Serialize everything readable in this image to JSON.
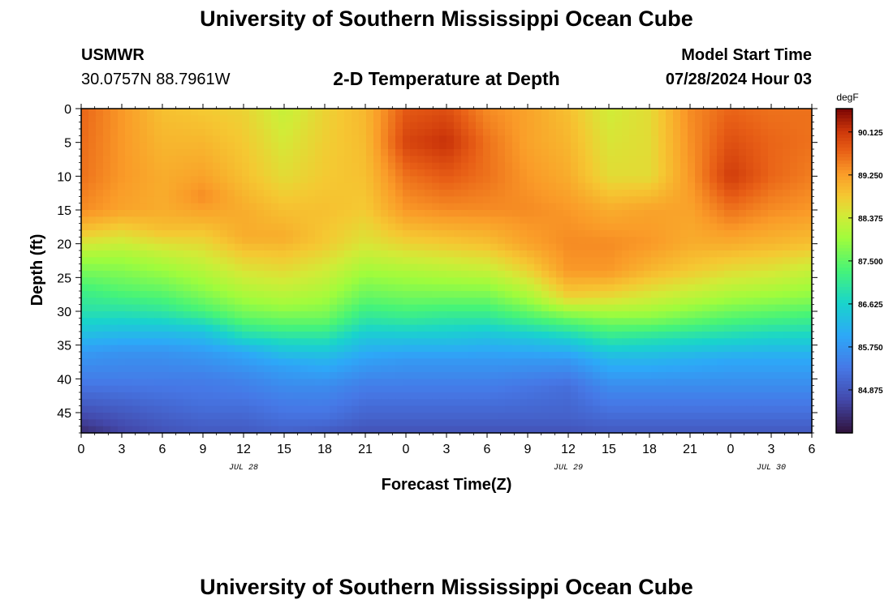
{
  "page": {
    "title_top": "University of Southern Mississippi Ocean Cube",
    "title_bottom": "University of Southern Mississippi Ocean Cube",
    "station_id": "USMWR",
    "station_coords": "30.0757N  88.7961W",
    "center_title": "2-D Temperature at Depth",
    "model_start_label": "Model Start Time",
    "model_start_value": "07/28/2024 Hour 03"
  },
  "chart_data": {
    "type": "heatmap",
    "title": "2-D Temperature at Depth",
    "xlabel": "Forecast Time(Z)",
    "ylabel": "Depth (ft)",
    "colorbar_unit": "degF",
    "x_range_hours": [
      0,
      54
    ],
    "x_tick_hours": [
      0,
      3,
      6,
      9,
      12,
      15,
      18,
      21,
      24,
      27,
      30,
      33,
      36,
      39,
      42,
      45,
      48,
      51,
      54
    ],
    "x_tick_labels": [
      "0",
      "3",
      "6",
      "9",
      "12",
      "15",
      "18",
      "21",
      "0",
      "3",
      "6",
      "9",
      "12",
      "15",
      "18",
      "21",
      "0",
      "3",
      "6"
    ],
    "date_labels": [
      {
        "hour": 12,
        "text": "JUL 28"
      },
      {
        "hour": 36,
        "text": "JUL 29"
      },
      {
        "hour": 51,
        "text": "JUL 30"
      }
    ],
    "y_range": [
      0,
      48
    ],
    "y_ticks": [
      0,
      5,
      10,
      15,
      20,
      25,
      30,
      35,
      40,
      45
    ],
    "y_tick_labels": [
      "0",
      "5",
      "10",
      "15",
      "20",
      "25",
      "30",
      "35",
      "40",
      "45"
    ],
    "colorbar_range": [
      84.0,
      90.6
    ],
    "colorbar_ticks": [
      90.125,
      89.25,
      88.375,
      87.5,
      86.625,
      85.75,
      84.875
    ],
    "colorbar_tick_labels": [
      "90.125",
      "89.250",
      "88.375",
      "87.500",
      "86.625",
      "85.750",
      "84.875"
    ],
    "grid": false,
    "columns": [
      {
        "hour": 0,
        "profile": [
          [
            0,
            89.7
          ],
          [
            10,
            89.6
          ],
          [
            15,
            89.4
          ],
          [
            18,
            88.9
          ],
          [
            22,
            88.0
          ],
          [
            27,
            87.2
          ],
          [
            30,
            86.9
          ],
          [
            33,
            86.4
          ],
          [
            36,
            85.8
          ],
          [
            40,
            85.4
          ],
          [
            44,
            84.9
          ],
          [
            48,
            84.3
          ]
        ]
      },
      {
        "hour": 3,
        "profile": [
          [
            0,
            89.3
          ],
          [
            10,
            89.3
          ],
          [
            15,
            89.2
          ],
          [
            18,
            88.7
          ],
          [
            22,
            88.0
          ],
          [
            27,
            87.4
          ],
          [
            30,
            86.9
          ],
          [
            33,
            86.3
          ],
          [
            36,
            85.7
          ],
          [
            40,
            85.4
          ],
          [
            44,
            85.0
          ],
          [
            48,
            84.6
          ]
        ]
      },
      {
        "hour": 6,
        "profile": [
          [
            0,
            88.9
          ],
          [
            10,
            89.1
          ],
          [
            15,
            89.1
          ],
          [
            18,
            88.9
          ],
          [
            22,
            88.2
          ],
          [
            27,
            87.5
          ],
          [
            30,
            87.0
          ],
          [
            33,
            86.3
          ],
          [
            36,
            85.7
          ],
          [
            40,
            85.4
          ],
          [
            44,
            85.1
          ],
          [
            48,
            84.8
          ]
        ]
      },
      {
        "hour": 9,
        "profile": [
          [
            0,
            88.8
          ],
          [
            10,
            89.2
          ],
          [
            13,
            89.4
          ],
          [
            16,
            89.1
          ],
          [
            22,
            88.4
          ],
          [
            27,
            87.8
          ],
          [
            30,
            87.3
          ],
          [
            33,
            86.4
          ],
          [
            36,
            85.8
          ],
          [
            40,
            85.4
          ],
          [
            44,
            85.2
          ],
          [
            48,
            84.9
          ]
        ]
      },
      {
        "hour": 12,
        "profile": [
          [
            0,
            88.7
          ],
          [
            10,
            88.9
          ],
          [
            15,
            89.1
          ],
          [
            19,
            89.1
          ],
          [
            24,
            88.5
          ],
          [
            28,
            88.0
          ],
          [
            31,
            87.5
          ],
          [
            34,
            86.7
          ],
          [
            36,
            86.0
          ],
          [
            40,
            85.5
          ],
          [
            44,
            85.2
          ],
          [
            48,
            84.9
          ]
        ]
      },
      {
        "hour": 15,
        "profile": [
          [
            0,
            88.3
          ],
          [
            10,
            88.6
          ],
          [
            15,
            88.9
          ],
          [
            19,
            89.1
          ],
          [
            24,
            88.6
          ],
          [
            29,
            88.0
          ],
          [
            32,
            87.4
          ],
          [
            35,
            86.6
          ],
          [
            38,
            85.9
          ],
          [
            42,
            85.5
          ],
          [
            46,
            85.2
          ],
          [
            48,
            85.0
          ]
        ]
      },
      {
        "hour": 18,
        "profile": [
          [
            0,
            88.7
          ],
          [
            10,
            88.8
          ],
          [
            15,
            88.9
          ],
          [
            20,
            88.8
          ],
          [
            24,
            88.4
          ],
          [
            28,
            88.0
          ],
          [
            31,
            87.6
          ],
          [
            34,
            86.9
          ],
          [
            37,
            86.2
          ],
          [
            41,
            85.6
          ],
          [
            46,
            85.2
          ],
          [
            48,
            84.9
          ]
        ]
      },
      {
        "hour": 21,
        "profile": [
          [
            0,
            89.0
          ],
          [
            10,
            88.9
          ],
          [
            15,
            88.8
          ],
          [
            20,
            88.5
          ],
          [
            24,
            88.0
          ],
          [
            28,
            87.5
          ],
          [
            31,
            87.0
          ],
          [
            34,
            86.4
          ],
          [
            37,
            85.9
          ],
          [
            41,
            85.4
          ],
          [
            46,
            85.0
          ],
          [
            48,
            84.8
          ]
        ]
      },
      {
        "hour": 24,
        "profile": [
          [
            0,
            89.8
          ],
          [
            5,
            90.0
          ],
          [
            10,
            89.6
          ],
          [
            15,
            89.3
          ],
          [
            20,
            88.7
          ],
          [
            24,
            88.1
          ],
          [
            28,
            87.6
          ],
          [
            31,
            87.1
          ],
          [
            34,
            86.4
          ],
          [
            37,
            85.8
          ],
          [
            41,
            85.4
          ],
          [
            46,
            85.0
          ],
          [
            48,
            84.8
          ]
        ]
      },
      {
        "hour": 27,
        "profile": [
          [
            0,
            89.9
          ],
          [
            5,
            90.2
          ],
          [
            10,
            89.8
          ],
          [
            15,
            89.4
          ],
          [
            20,
            88.8
          ],
          [
            24,
            88.2
          ],
          [
            28,
            87.6
          ],
          [
            31,
            87.0
          ],
          [
            34,
            86.4
          ],
          [
            37,
            85.8
          ],
          [
            41,
            85.4
          ],
          [
            46,
            85.0
          ],
          [
            48,
            84.8
          ]
        ]
      },
      {
        "hour": 30,
        "profile": [
          [
            0,
            89.4
          ],
          [
            5,
            89.6
          ],
          [
            10,
            89.6
          ],
          [
            15,
            89.4
          ],
          [
            20,
            88.9
          ],
          [
            24,
            88.3
          ],
          [
            28,
            87.6
          ],
          [
            31,
            87.0
          ],
          [
            34,
            86.3
          ],
          [
            37,
            85.8
          ],
          [
            41,
            85.4
          ],
          [
            46,
            85.0
          ],
          [
            48,
            84.8
          ]
        ]
      },
      {
        "hour": 33,
        "profile": [
          [
            0,
            89.2
          ],
          [
            5,
            89.2
          ],
          [
            10,
            89.3
          ],
          [
            15,
            89.4
          ],
          [
            20,
            89.2
          ],
          [
            24,
            88.7
          ],
          [
            28,
            88.0
          ],
          [
            31,
            87.3
          ],
          [
            34,
            86.4
          ],
          [
            37,
            85.8
          ],
          [
            41,
            85.3
          ],
          [
            46,
            85.0
          ],
          [
            48,
            84.8
          ]
        ]
      },
      {
        "hour": 36,
        "profile": [
          [
            0,
            88.9
          ],
          [
            5,
            89.0
          ],
          [
            10,
            89.1
          ],
          [
            15,
            89.3
          ],
          [
            20,
            89.4
          ],
          [
            24,
            89.3
          ],
          [
            28,
            88.7
          ],
          [
            31,
            87.6
          ],
          [
            34,
            86.6
          ],
          [
            37,
            85.8
          ],
          [
            41,
            85.2
          ],
          [
            46,
            85.0
          ],
          [
            48,
            84.8
          ]
        ]
      },
      {
        "hour": 39,
        "profile": [
          [
            0,
            88.4
          ],
          [
            10,
            88.6
          ],
          [
            15,
            89.1
          ],
          [
            20,
            89.4
          ],
          [
            24,
            89.3
          ],
          [
            28,
            88.6
          ],
          [
            31,
            87.8
          ],
          [
            34,
            87.0
          ],
          [
            37,
            86.2
          ],
          [
            41,
            85.6
          ],
          [
            46,
            85.1
          ],
          [
            48,
            84.9
          ]
        ]
      },
      {
        "hour": 42,
        "profile": [
          [
            0,
            88.6
          ],
          [
            10,
            88.6
          ],
          [
            15,
            89.2
          ],
          [
            20,
            89.3
          ],
          [
            24,
            89.0
          ],
          [
            28,
            88.4
          ],
          [
            31,
            87.8
          ],
          [
            34,
            86.9
          ],
          [
            37,
            86.2
          ],
          [
            41,
            85.6
          ],
          [
            46,
            85.1
          ],
          [
            48,
            84.9
          ]
        ]
      },
      {
        "hour": 45,
        "profile": [
          [
            0,
            89.4
          ],
          [
            10,
            89.3
          ],
          [
            15,
            89.2
          ],
          [
            20,
            89.1
          ],
          [
            24,
            88.8
          ],
          [
            28,
            88.2
          ],
          [
            31,
            87.6
          ],
          [
            34,
            86.8
          ],
          [
            37,
            86.1
          ],
          [
            41,
            85.6
          ],
          [
            46,
            85.1
          ],
          [
            48,
            84.9
          ]
        ]
      },
      {
        "hour": 48,
        "profile": [
          [
            0,
            89.7
          ],
          [
            5,
            89.9
          ],
          [
            10,
            90.1
          ],
          [
            15,
            89.6
          ],
          [
            20,
            89.1
          ],
          [
            24,
            88.6
          ],
          [
            28,
            88.0
          ],
          [
            31,
            87.4
          ],
          [
            34,
            86.7
          ],
          [
            37,
            86.0
          ],
          [
            41,
            85.6
          ],
          [
            46,
            85.1
          ],
          [
            48,
            84.9
          ]
        ]
      },
      {
        "hour": 51,
        "profile": [
          [
            0,
            89.6
          ],
          [
            5,
            89.7
          ],
          [
            10,
            89.7
          ],
          [
            15,
            89.4
          ],
          [
            20,
            89.0
          ],
          [
            24,
            88.5
          ],
          [
            28,
            87.9
          ],
          [
            31,
            87.3
          ],
          [
            34,
            86.6
          ],
          [
            37,
            86.0
          ],
          [
            41,
            85.6
          ],
          [
            46,
            85.1
          ],
          [
            48,
            84.9
          ]
        ]
      },
      {
        "hour": 54,
        "profile": [
          [
            0,
            89.6
          ],
          [
            5,
            89.6
          ],
          [
            10,
            89.5
          ],
          [
            15,
            89.3
          ],
          [
            20,
            88.9
          ],
          [
            24,
            88.3
          ],
          [
            28,
            87.8
          ],
          [
            31,
            87.2
          ],
          [
            34,
            86.6
          ],
          [
            37,
            86.0
          ],
          [
            41,
            85.6
          ],
          [
            46,
            85.1
          ],
          [
            48,
            84.9
          ]
        ]
      }
    ]
  }
}
